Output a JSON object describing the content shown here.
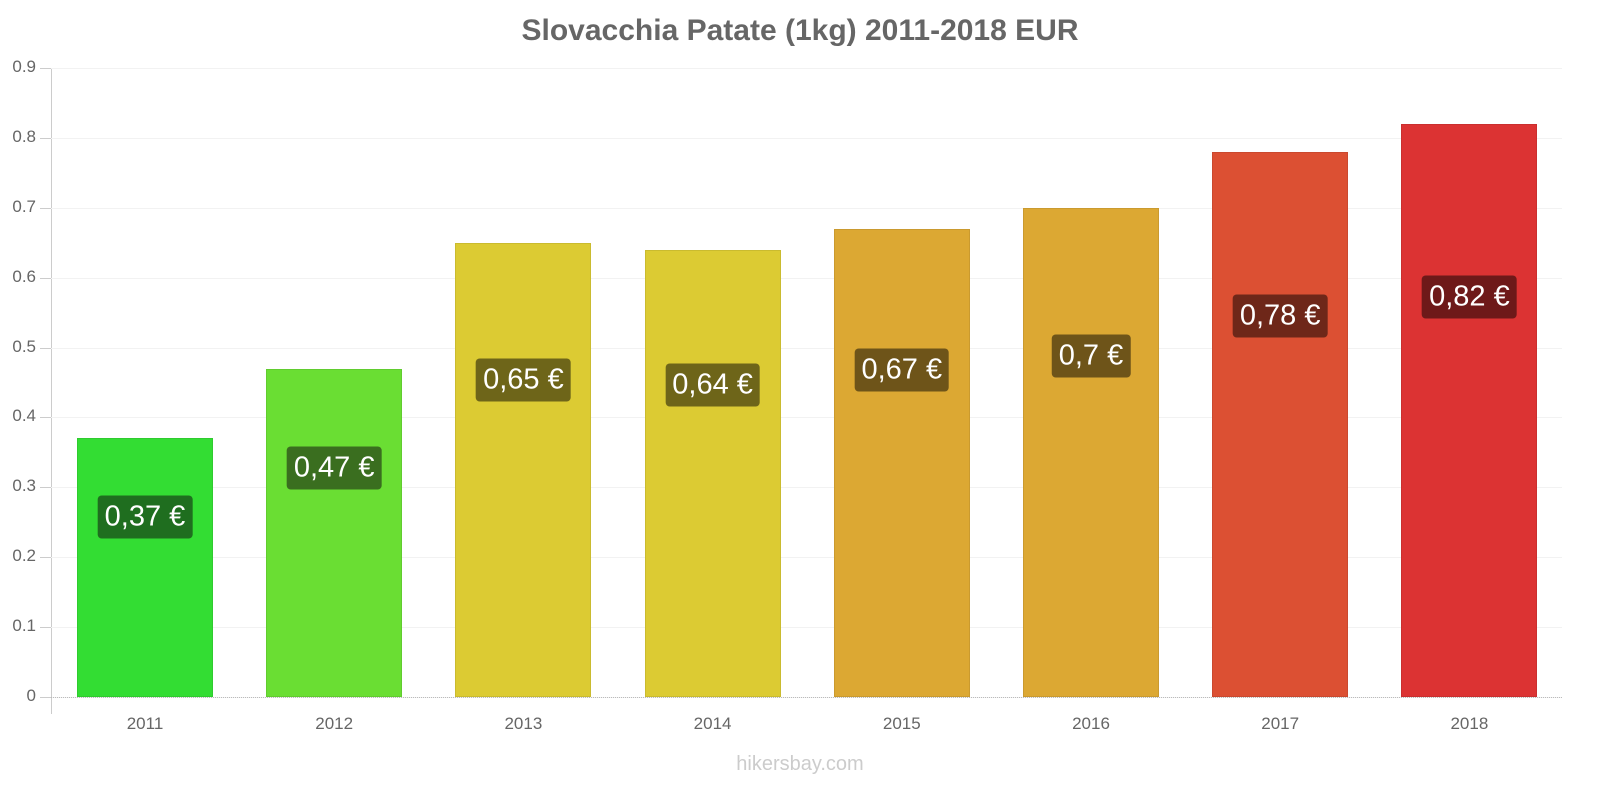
{
  "chart_data": {
    "type": "bar",
    "title": "Slovacchia Patate (1kg) 2011-2018 EUR",
    "xlabel": "",
    "ylabel": "",
    "categories": [
      "2011",
      "2012",
      "2013",
      "2014",
      "2015",
      "2016",
      "2017",
      "2018"
    ],
    "values": [
      0.37,
      0.47,
      0.65,
      0.64,
      0.67,
      0.7,
      0.78,
      0.82
    ],
    "data_labels": [
      "0,37 €",
      "0,47 €",
      "0,65 €",
      "0,64 €",
      "0,67 €",
      "0,7 €",
      "0,78 €",
      "0,82 €"
    ],
    "bar_colors": [
      "#33dd33",
      "#6ade33",
      "#dccb33",
      "#dccb33",
      "#dca833",
      "#dca833",
      "#dc5033",
      "#dc3333"
    ],
    "label_bg_colors": [
      "#1f6e1f",
      "#3a6e1f",
      "#6e6519",
      "#6e6519",
      "#6e5419",
      "#6e5419",
      "#6e2719",
      "#6e1919"
    ],
    "ylim": [
      0,
      0.9
    ],
    "yticks": [
      "0",
      "0.1",
      "0.2",
      "0.3",
      "0.4",
      "0.5",
      "0.6",
      "0.7",
      "0.8",
      "0.9"
    ],
    "grid": true,
    "legend": null
  },
  "watermark": "hikersbay.com"
}
